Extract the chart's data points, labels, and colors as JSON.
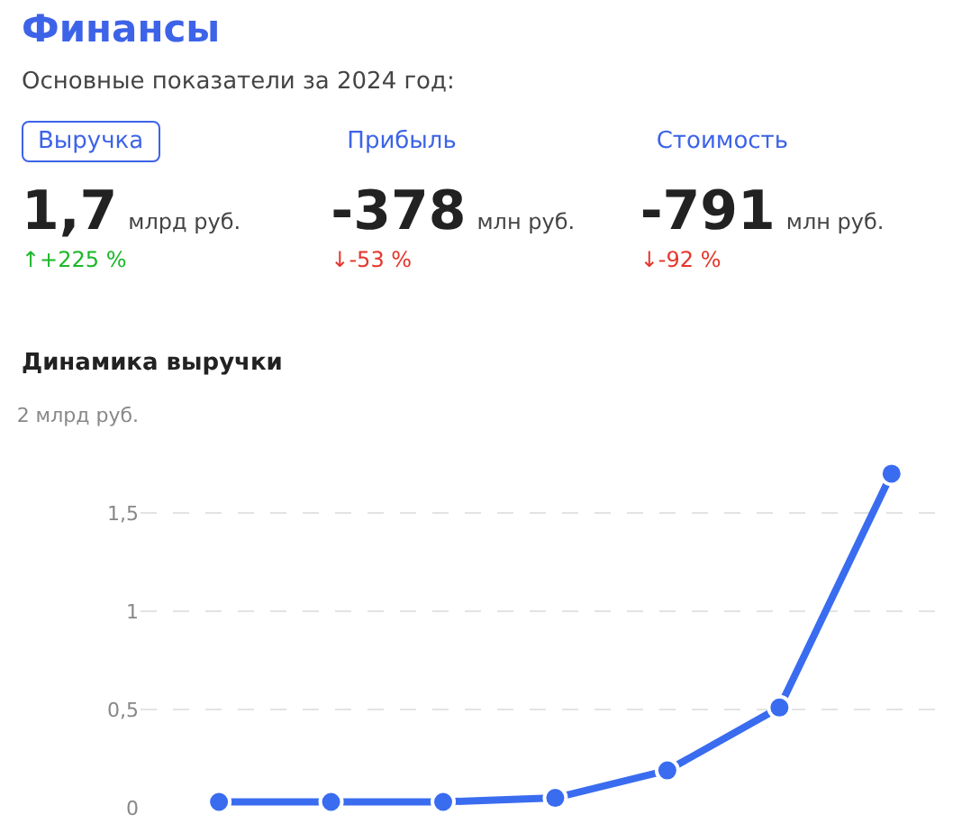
{
  "chart_data": [
    {
      "type": "other",
      "title": "Финансы",
      "subtitle": "Основные показатели за 2024 год:",
      "annotations": [
        "Выручка",
        "1,7",
        "млрд руб.",
        "↑+225 %",
        "Прибыль",
        "-378",
        "млн руб.",
        "↓-53 %",
        "Стоимость",
        "-791",
        "млн руб.",
        "↓-92 %"
      ]
    },
    {
      "type": "line",
      "title": "Динамика выручки",
      "categories": [
        null,
        null,
        null,
        null,
        null,
        null,
        null
      ],
      "series": [
        {
          "color": "#3a6cf0",
          "values": [
            0.03,
            0.03,
            0.03,
            0.05,
            0.19,
            0.51,
            1.7
          ]
        }
      ],
      "ylim": [
        0,
        2
      ],
      "yticks": [
        0,
        {
          "value": 0.5,
          "label": "0,5"
        },
        1,
        {
          "value": 1.5,
          "label": "1,5"
        },
        {
          "value": 2,
          "label": "2 млрд руб."
        }
      ],
      "grid": "y",
      "marker": "circle",
      "line_style": "solid",
      "tick_labels": "y"
    }
  ]
}
